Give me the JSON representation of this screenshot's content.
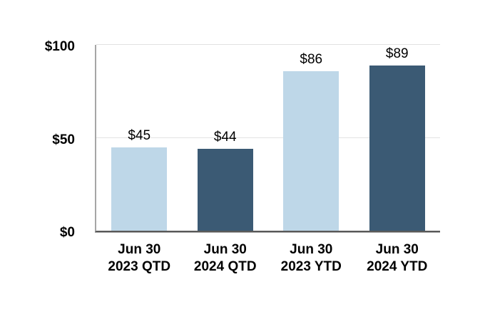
{
  "chart_data": {
    "type": "bar",
    "title": "",
    "xlabel": "",
    "ylabel": "",
    "categories": [
      "Jun 30\n2023 QTD",
      "Jun 30\n2024 QTD",
      "Jun 30\n2023 YTD",
      "Jun 30\n2024 YTD"
    ],
    "values": [
      45,
      44,
      86,
      89
    ],
    "data_labels": [
      "$45",
      "$44",
      "$86",
      "$89"
    ],
    "bar_colors": [
      "#BED7E8",
      "#3B5A74",
      "#BED7E8",
      "#3B5A74"
    ],
    "y_ticks": [
      {
        "value": 0,
        "label": "$0"
      },
      {
        "value": 50,
        "label": "$50"
      },
      {
        "value": 100,
        "label": "$100"
      }
    ],
    "ylim": [
      0,
      100
    ],
    "grid": "horizontal",
    "legend": "none"
  },
  "colors": {
    "bar_light_blue": "#BED7E8",
    "bar_dark_blue": "#3B5A74",
    "gridline": "#E2E2E2",
    "axis_left": "#A6A6A6",
    "axis_bottom": "#595959",
    "text": "#000000",
    "background": "#FFFFFF"
  }
}
